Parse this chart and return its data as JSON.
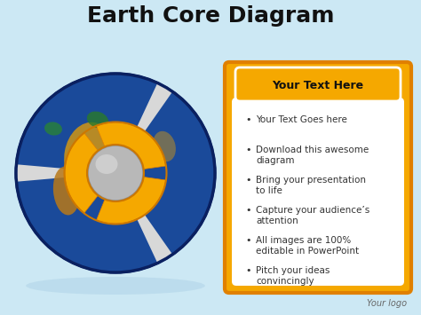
{
  "title": "Earth Core Diagram",
  "title_fontsize": 18,
  "title_fontweight": "bold",
  "bg_color": "#cce8f4",
  "header_box_color": "#f5a800",
  "header_text": "Your Text Here",
  "header_text_color": "#111111",
  "content_box_border": "#f5a800",
  "content_box_bg": "#ffffff",
  "bullet_items": [
    "Your Text Goes here",
    "Download this awesome\ndiagram",
    "Bring your presentation\nto life",
    "Capture your audience’s\nattention",
    "All images are 100%\neditable in PowerPoint",
    "Pitch your ideas\nconvincingly"
  ],
  "bullet_fontsize": 7.5,
  "logo_text": "Your logo",
  "logo_fontsize": 7
}
